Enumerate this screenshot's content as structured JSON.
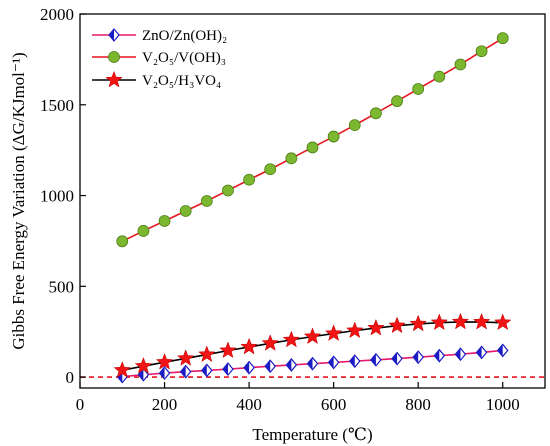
{
  "chart_data": {
    "type": "line",
    "xlabel": "Temperature (℃)",
    "ylabel": "Gibbs Free Energy Variation (ΔG/KJmol⁻¹)",
    "xlim": [
      0,
      1100
    ],
    "ylim": [
      -60,
      2000
    ],
    "xticks": [
      0,
      200,
      400,
      600,
      800,
      1000
    ],
    "yticks": [
      0,
      500,
      1000,
      1500,
      2000
    ],
    "x": [
      100,
      150,
      200,
      250,
      300,
      350,
      400,
      450,
      500,
      550,
      600,
      650,
      700,
      750,
      800,
      850,
      900,
      950,
      1000
    ],
    "reference_line": {
      "y": 0,
      "style": "dashed",
      "color": "#e8141e"
    },
    "legend_position": "top-left",
    "series": [
      {
        "name": "ZnO/Zn(OH)₂",
        "marker": "diamond",
        "marker_color": "#1c1cc4",
        "line_color": "#e8176b",
        "values": [
          3,
          13,
          22,
          30,
          37,
          44,
          52,
          60,
          67,
          74,
          81,
          88,
          95,
          102,
          110,
          118,
          126,
          136,
          147
        ]
      },
      {
        "name": "V₂O₅/V(OH)₃",
        "marker": "circle",
        "marker_color": "#7cb82f",
        "line_color": "#e8141e",
        "values": [
          748,
          805,
          860,
          915,
          970,
          1028,
          1087,
          1145,
          1205,
          1265,
          1325,
          1388,
          1453,
          1520,
          1587,
          1655,
          1722,
          1795,
          1867
        ]
      },
      {
        "name": "V₂O₅/H₃VO₄",
        "marker": "star",
        "marker_color": "#f01414",
        "line_color": "#000000",
        "values": [
          38,
          60,
          82,
          103,
          124,
          146,
          166,
          186,
          205,
          223,
          240,
          256,
          270,
          283,
          293,
          300,
          304,
          303,
          300
        ]
      }
    ]
  }
}
